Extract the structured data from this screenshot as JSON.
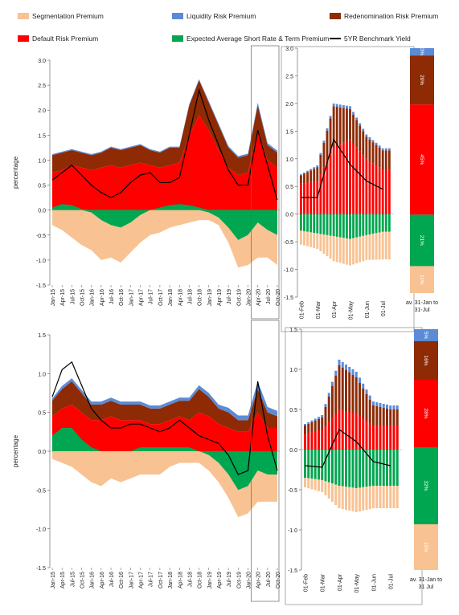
{
  "legend": [
    {
      "key": "segmentation",
      "label": "Segmentation Premium",
      "color": "#F8C293"
    },
    {
      "key": "liquidity",
      "label": "Liquidity Risk Premium",
      "color": "#5B8BD6"
    },
    {
      "key": "redenomination",
      "label": "Redenomination Risk Premium",
      "color": "#8E2A04"
    },
    {
      "key": "default",
      "label": "Default Risk Premium",
      "color": "#FF0000"
    },
    {
      "key": "short_rate",
      "label": "Expected Average Short Rate & Term Premium",
      "color": "#00A650"
    },
    {
      "key": "benchmark",
      "label": "5YR Benchmark Yield",
      "color": "#000000"
    }
  ],
  "chart_data": [
    {
      "type": "area",
      "ylabel": "percentage",
      "ylim": [
        -1.5,
        3.0
      ],
      "yticks": [
        "3.0",
        "2.5",
        "2.0",
        "1.5",
        "1.0",
        "0.5",
        "0.0",
        "-0.5",
        "-1.0",
        "-1.5"
      ],
      "x": [
        "Jan-15",
        "Apr-15",
        "Jul-15",
        "Oct-15",
        "Jan-16",
        "Apr-16",
        "Jul-16",
        "Oct-16",
        "Jan-17",
        "Apr-17",
        "Jul-17",
        "Oct-17",
        "Jan-18",
        "Apr-18",
        "Jul-18",
        "Oct-18",
        "Jan-19",
        "Apr-19",
        "Jul-19",
        "Oct-19",
        "Jan-20",
        "Apr-20",
        "Jul-20",
        "Oct-20"
      ],
      "series": [
        {
          "name": "Segmentation Premium",
          "key": "segmentation",
          "values": [
            -0.3,
            -0.4,
            -0.55,
            -0.7,
            -0.75,
            -0.8,
            -0.65,
            -0.7,
            -0.6,
            -0.55,
            -0.5,
            -0.45,
            -0.35,
            -0.3,
            -0.25,
            -0.2,
            -0.15,
            -0.15,
            -0.3,
            -0.55,
            -0.6,
            -0.7,
            -0.55,
            -0.6
          ]
        },
        {
          "name": "Expected Average Short Rate & Term Premium",
          "key": "short_rate",
          "values": [
            0.05,
            0.12,
            0.1,
            0.02,
            -0.05,
            -0.2,
            -0.3,
            -0.35,
            -0.25,
            -0.1,
            0,
            0.05,
            0.1,
            0.12,
            0.1,
            0.05,
            -0.05,
            -0.15,
            -0.35,
            -0.6,
            -0.5,
            -0.25,
            -0.4,
            -0.5
          ]
        },
        {
          "name": "Default Risk Premium",
          "key": "default",
          "values": [
            0.75,
            0.8,
            0.9,
            0.85,
            0.8,
            0.85,
            0.9,
            0.85,
            0.9,
            0.95,
            0.9,
            0.85,
            0.9,
            0.95,
            1.5,
            1.9,
            1.6,
            1.2,
            0.85,
            0.7,
            0.75,
            1.6,
            1.0,
            0.85
          ]
        },
        {
          "name": "Redenomination Risk Premium",
          "key": "redenomination",
          "values": [
            0.35,
            0.35,
            0.3,
            0.3,
            0.3,
            0.3,
            0.35,
            0.35,
            0.35,
            0.35,
            0.3,
            0.3,
            0.35,
            0.3,
            0.6,
            0.7,
            0.55,
            0.5,
            0.4,
            0.35,
            0.35,
            0.5,
            0.3,
            0.3
          ]
        },
        {
          "name": "Liquidity Risk Premium",
          "key": "liquidity",
          "values": [
            0.02,
            0.02,
            0.02,
            0.02,
            0.02,
            0.02,
            0.02,
            0.02,
            0.02,
            0.02,
            0.02,
            0.02,
            0.02,
            0.02,
            0.02,
            0.02,
            0.03,
            0.03,
            0.03,
            0.03,
            0.03,
            0.05,
            0.04,
            0.04
          ]
        },
        {
          "name": "5YR Benchmark Yield",
          "key": "benchmark",
          "values": [
            0.6,
            0.75,
            0.9,
            0.7,
            0.5,
            0.35,
            0.25,
            0.35,
            0.55,
            0.7,
            0.75,
            0.55,
            0.55,
            0.65,
            1.5,
            2.4,
            1.8,
            1.3,
            0.8,
            0.5,
            0.5,
            1.6,
            0.9,
            0.2
          ]
        }
      ]
    },
    {
      "type": "bar",
      "ylim": [
        -1.5,
        3.0
      ],
      "yticks": [
        "3.0",
        "2.5",
        "2.0",
        "1.5",
        "1.0",
        "0.5",
        "0.0",
        "-0.5",
        "-1.0",
        "-1.5"
      ],
      "x": [
        "01-Feb",
        "01-Mar",
        "01-Apr",
        "01-May",
        "01-Jun",
        "01-Jul"
      ],
      "series": [
        {
          "name": "Segmentation Premium",
          "key": "segmentation",
          "values": [
            -0.25,
            -0.28,
            -0.45,
            -0.48,
            -0.45,
            -0.5
          ]
        },
        {
          "name": "Expected Average Short Rate & Term Premium",
          "key": "short_rate",
          "values": [
            -0.3,
            -0.35,
            -0.4,
            -0.45,
            -0.38,
            -0.32
          ]
        },
        {
          "name": "Default Risk Premium",
          "key": "default",
          "values": [
            0.55,
            0.6,
            1.2,
            1.35,
            1.0,
            0.8
          ]
        },
        {
          "name": "Redenomination Risk Premium",
          "key": "redenomination",
          "values": [
            0.15,
            0.25,
            0.75,
            0.55,
            0.4,
            0.35
          ]
        },
        {
          "name": "Liquidity Risk Premium",
          "key": "liquidity",
          "values": [
            0.02,
            0.03,
            0.05,
            0.05,
            0.04,
            0.04
          ]
        },
        {
          "name": "5YR Benchmark Yield",
          "key": "benchmark",
          "values": [
            0.3,
            0.3,
            1.35,
            0.9,
            0.6,
            0.45
          ]
        }
      ]
    },
    {
      "type": "bar",
      "note": "stacked shares, av. 31-Jan to 31-Jul",
      "categories": [
        "av. 31-Jan to 31-Jul"
      ],
      "series": [
        {
          "key": "liquidity",
          "value": 3,
          "label": "3%"
        },
        {
          "key": "redenomination",
          "value": 20,
          "label": "20%"
        },
        {
          "key": "default",
          "value": 45,
          "label": "45%"
        },
        {
          "key": "short_rate",
          "value": 21,
          "label": "21%"
        },
        {
          "key": "segmentation",
          "value": 11,
          "label": "11%"
        }
      ]
    },
    {
      "type": "area",
      "ylabel": "percentage",
      "ylim": [
        -1.5,
        1.5
      ],
      "yticks": [
        "1.5",
        "1.0",
        "0.5",
        "0.0",
        "-0.5",
        "-1.0",
        "-1.5"
      ],
      "x": [
        "Jan-15",
        "Apr-15",
        "Jul-15",
        "Oct-15",
        "Jan-16",
        "Apr-16",
        "Jul-16",
        "Oct-16",
        "Jan-17",
        "Apr-17",
        "Jul-17",
        "Oct-17",
        "Jan-18",
        "Apr-18",
        "Jul-18",
        "Oct-18",
        "Jan-19",
        "Apr-19",
        "Jul-19",
        "Oct-19",
        "Jan-20",
        "Apr-20",
        "Jul-20",
        "Oct-20"
      ],
      "series": [
        {
          "name": "Segmentation Premium",
          "key": "segmentation",
          "values": [
            -0.1,
            -0.15,
            -0.2,
            -0.3,
            -0.4,
            -0.45,
            -0.35,
            -0.4,
            -0.35,
            -0.3,
            -0.3,
            -0.3,
            -0.2,
            -0.15,
            -0.15,
            -0.15,
            -0.2,
            -0.25,
            -0.3,
            -0.35,
            -0.35,
            -0.4,
            -0.35,
            -0.35
          ]
        },
        {
          "name": "Expected Average Short Rate & Term Premium",
          "key": "short_rate",
          "values": [
            0.2,
            0.3,
            0.3,
            0.15,
            0.05,
            0,
            0,
            0,
            0,
            0.05,
            0.05,
            0.05,
            0.05,
            0.05,
            0.05,
            0,
            -0.05,
            -0.15,
            -0.3,
            -0.5,
            -0.45,
            -0.25,
            -0.3,
            -0.3
          ]
        },
        {
          "name": "Default Risk Premium",
          "key": "default",
          "values": [
            0.45,
            0.55,
            0.6,
            0.5,
            0.4,
            0.4,
            0.45,
            0.4,
            0.4,
            0.4,
            0.35,
            0.35,
            0.4,
            0.45,
            0.4,
            0.5,
            0.45,
            0.35,
            0.3,
            0.25,
            0.25,
            0.5,
            0.3,
            0.3
          ]
        },
        {
          "name": "Redenomination Risk Premium",
          "key": "redenomination",
          "values": [
            0.2,
            0.25,
            0.3,
            0.25,
            0.2,
            0.2,
            0.2,
            0.2,
            0.2,
            0.2,
            0.2,
            0.2,
            0.2,
            0.2,
            0.25,
            0.3,
            0.25,
            0.2,
            0.2,
            0.15,
            0.15,
            0.3,
            0.2,
            0.15
          ]
        },
        {
          "name": "Liquidity Risk Premium",
          "key": "liquidity",
          "values": [
            0.03,
            0.04,
            0.04,
            0.04,
            0.04,
            0.04,
            0.04,
            0.04,
            0.04,
            0.04,
            0.04,
            0.04,
            0.04,
            0.04,
            0.04,
            0.05,
            0.05,
            0.05,
            0.06,
            0.06,
            0.06,
            0.1,
            0.07,
            0.07
          ]
        },
        {
          "name": "5YR Benchmark Yield",
          "key": "benchmark",
          "values": [
            0.7,
            1.05,
            1.15,
            0.85,
            0.55,
            0.4,
            0.3,
            0.3,
            0.35,
            0.35,
            0.3,
            0.25,
            0.3,
            0.4,
            0.3,
            0.2,
            0.15,
            0.1,
            -0.05,
            -0.3,
            -0.25,
            0.9,
            0.2,
            -0.25
          ]
        }
      ]
    },
    {
      "type": "bar",
      "ylim": [
        -1.5,
        1.5
      ],
      "yticks": [
        "1.5",
        "1.0",
        "0.5",
        "0.0",
        "-0.5",
        "-1.0",
        "-1.5"
      ],
      "x": [
        "01-Feb",
        "01-Mar",
        "01-Apr",
        "01-May",
        "01-Jun",
        "01-Jul"
      ],
      "series": [
        {
          "name": "Segmentation Premium",
          "key": "segmentation",
          "values": [
            -0.12,
            -0.15,
            -0.28,
            -0.3,
            -0.28,
            -0.28
          ]
        },
        {
          "name": "Expected Average Short Rate & Term Premium",
          "key": "short_rate",
          "values": [
            -0.35,
            -0.38,
            -0.45,
            -0.48,
            -0.45,
            -0.45
          ]
        },
        {
          "name": "Default Risk Premium",
          "key": "default",
          "values": [
            0.2,
            0.25,
            0.5,
            0.45,
            0.3,
            0.3
          ]
        },
        {
          "name": "Redenomination Risk Premium",
          "key": "redenomination",
          "values": [
            0.1,
            0.15,
            0.55,
            0.45,
            0.25,
            0.2
          ]
        },
        {
          "name": "Liquidity Risk Premium",
          "key": "liquidity",
          "values": [
            0.02,
            0.03,
            0.07,
            0.07,
            0.05,
            0.05
          ]
        },
        {
          "name": "5YR Benchmark Yield",
          "key": "benchmark",
          "values": [
            -0.2,
            -0.22,
            0.25,
            0.1,
            -0.15,
            -0.2
          ]
        }
      ]
    },
    {
      "type": "bar",
      "note": "stacked shares, av. 31-Jan to 31 Jul",
      "categories": [
        "av. 31-Jan to 31 Jul"
      ],
      "series": [
        {
          "key": "liquidity",
          "value": 5,
          "label": "5%"
        },
        {
          "key": "redenomination",
          "value": 16,
          "label": "16%"
        },
        {
          "key": "default",
          "value": 28,
          "label": "28%"
        },
        {
          "key": "short_rate",
          "value": 32,
          "label": "32%"
        },
        {
          "key": "segmentation",
          "value": 19,
          "label": "19%"
        }
      ]
    }
  ],
  "footnotes": {
    "top": [
      "av. 31-Jan to",
      "31-Jul"
    ],
    "bottom": [
      "av. 31-Jan to",
      "31 Jul"
    ]
  }
}
